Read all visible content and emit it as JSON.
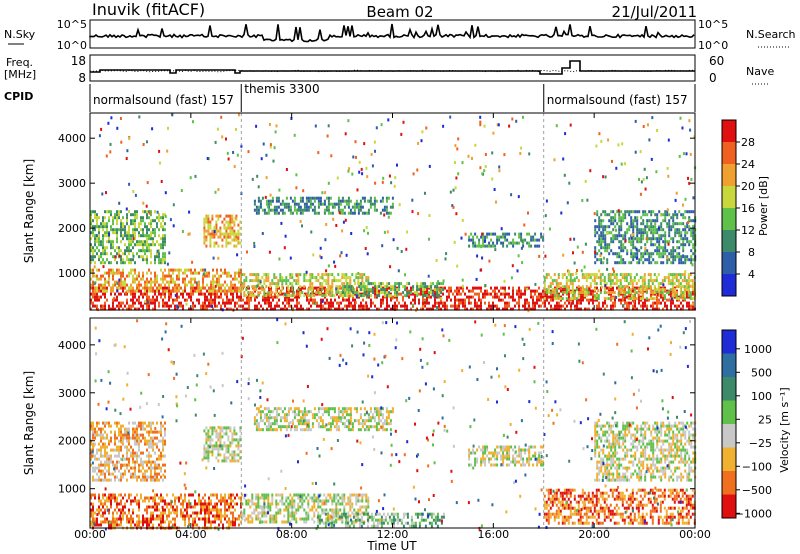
{
  "header": {
    "site": "Inuvik (fitACF)",
    "beam": "Beam 02",
    "date": "21/Jul/2011"
  },
  "strip_sky": {
    "left_label": "N.Sky",
    "right_label": "N.Search",
    "left_ticks": [
      "10^5",
      "10^0"
    ],
    "right_ticks": [
      "10^5",
      "10^0"
    ]
  },
  "strip_freq": {
    "left_label_1": "Freq.",
    "left_label_2": "[MHz]",
    "right_label": "Nave",
    "left_ticks": [
      "18",
      "8"
    ],
    "right_ticks": [
      "60",
      "0"
    ]
  },
  "cpid": {
    "label": "CPID",
    "segments": [
      {
        "name": "normalsound (fast) 157",
        "start_hour": 0,
        "end_hour": 6
      },
      {
        "name": "themis 3300",
        "start_hour": 6,
        "end_hour": 18
      },
      {
        "name": "normalsound (fast) 157",
        "start_hour": 18,
        "end_hour": 24
      }
    ]
  },
  "power_panel": {
    "ylabel": "Slant Range [km]",
    "yticks": [
      1000,
      2000,
      3000,
      4000
    ],
    "colorbar_label": "Power [dB]",
    "colorbar_ticks": [
      "4",
      "8",
      "12",
      "16",
      "20",
      "24",
      "28"
    ],
    "colors": [
      "#1e2bd6",
      "#2f5ea8",
      "#3d8a6a",
      "#5fc04a",
      "#c8d83c",
      "#f0a030",
      "#f06020",
      "#e01010"
    ]
  },
  "velocity_panel": {
    "ylabel": "Slant Range [km]",
    "yticks": [
      1000,
      2000,
      3000,
      4000
    ],
    "colorbar_label": "Velocity [m s⁻¹]",
    "colorbar_ticks": [
      "1000",
      "500",
      "100",
      "25",
      "−25",
      "−100",
      "−500",
      "−1000"
    ],
    "colors": [
      "#1e2bd6",
      "#2f6ea0",
      "#3d8a6a",
      "#5fc04a",
      "#c8c8c8",
      "#f0b030",
      "#f07020",
      "#e01010"
    ]
  },
  "xaxis": {
    "label": "Time UT",
    "ticks": [
      "00:00",
      "04:00",
      "08:00",
      "12:00",
      "16:00",
      "20:00",
      "00:00"
    ]
  },
  "chart_data": {
    "type": "heatmap",
    "x_range_hours": [
      0,
      24
    ],
    "y_range_km": [
      180,
      4560
    ],
    "power_regions": [
      {
        "t0": 0,
        "t1": 24,
        "r0": 200,
        "r1": 700,
        "level": 7
      },
      {
        "t0": 0,
        "t1": 6,
        "r0": 600,
        "r1": 1100,
        "level": 5
      },
      {
        "t0": 0,
        "t1": 3,
        "r0": 1200,
        "r1": 2400,
        "level": 3
      },
      {
        "t0": 4.5,
        "t1": 6,
        "r0": 1600,
        "r1": 2300,
        "level": 5
      },
      {
        "t0": 6.5,
        "t1": 12,
        "r0": 2300,
        "r1": 2700,
        "level": 2
      },
      {
        "t0": 6,
        "t1": 11,
        "r0": 500,
        "r1": 1000,
        "level": 4
      },
      {
        "t0": 10,
        "t1": 14,
        "r0": 500,
        "r1": 800,
        "level": 3
      },
      {
        "t0": 15,
        "t1": 18,
        "r0": 1600,
        "r1": 1900,
        "level": 2
      },
      {
        "t0": 18,
        "t1": 24,
        "r0": 400,
        "r1": 1000,
        "level": 4
      },
      {
        "t0": 20,
        "t1": 24,
        "r0": 1200,
        "r1": 2400,
        "level": 2
      }
    ],
    "velocity_regions": [
      {
        "t0": 0,
        "t1": 6,
        "r0": 200,
        "r1": 900,
        "level": 6
      },
      {
        "t0": 0,
        "t1": 3,
        "r0": 1200,
        "r1": 2400,
        "level": 5
      },
      {
        "t0": 4.5,
        "t1": 6,
        "r0": 1600,
        "r1": 2300,
        "level": 4
      },
      {
        "t0": 6.5,
        "t1": 12,
        "r0": 2200,
        "r1": 2700,
        "level": 4
      },
      {
        "t0": 6,
        "t1": 11,
        "r0": 300,
        "r1": 900,
        "level": 4
      },
      {
        "t0": 9,
        "t1": 14,
        "r0": 200,
        "r1": 500,
        "level": 3
      },
      {
        "t0": 15,
        "t1": 18,
        "r0": 1500,
        "r1": 1900,
        "level": 4
      },
      {
        "t0": 18,
        "t1": 24,
        "r0": 300,
        "r1": 1000,
        "level": 6
      },
      {
        "t0": 20,
        "t1": 24,
        "r0": 1200,
        "r1": 2400,
        "level": 4
      }
    ]
  }
}
